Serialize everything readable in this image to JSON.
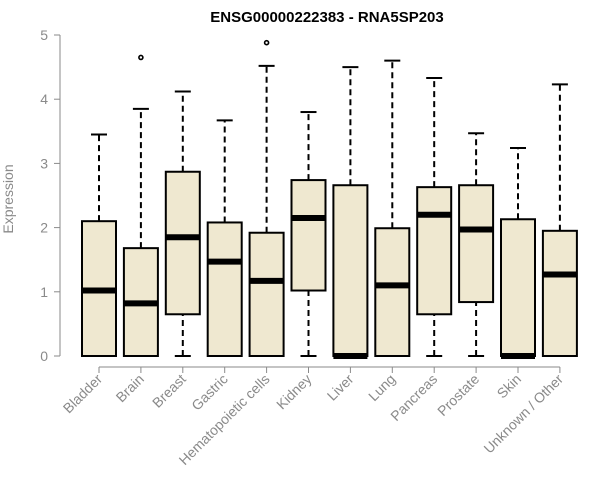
{
  "chart_data": {
    "type": "boxplot",
    "title": "ENSG00000222383 - RNA5SP203",
    "xlabel": "",
    "ylabel": "Expression",
    "ylim": [
      0,
      5
    ],
    "yticks": [
      "0",
      "1",
      "2",
      "3",
      "4",
      "5"
    ],
    "categories": [
      "Bladder",
      "Brain",
      "Breast",
      "Gastric",
      "Hematopoietic cells",
      "Kidney",
      "Liver",
      "Lung",
      "Pancreas",
      "Prostate",
      "Skin",
      "Unknown / Other"
    ],
    "boxes": [
      {
        "min": 0,
        "q1": 0,
        "median": 1.02,
        "q3": 2.1,
        "max": 3.45,
        "outliers": []
      },
      {
        "min": 0,
        "q1": 0,
        "median": 0.82,
        "q3": 1.68,
        "max": 3.85,
        "outliers": [
          4.65
        ]
      },
      {
        "min": 0,
        "q1": 0.65,
        "median": 1.85,
        "q3": 2.87,
        "max": 4.12,
        "outliers": []
      },
      {
        "min": 0,
        "q1": 0,
        "median": 1.47,
        "q3": 2.08,
        "max": 3.67,
        "outliers": []
      },
      {
        "min": 0,
        "q1": 0,
        "median": 1.17,
        "q3": 1.92,
        "max": 4.52,
        "outliers": [
          4.88
        ]
      },
      {
        "min": 0,
        "q1": 1.02,
        "median": 2.15,
        "q3": 2.74,
        "max": 3.8,
        "outliers": []
      },
      {
        "min": 0,
        "q1": 0,
        "median": 0,
        "q3": 2.66,
        "max": 4.5,
        "outliers": []
      },
      {
        "min": 0,
        "q1": 0,
        "median": 1.1,
        "q3": 1.99,
        "max": 4.6,
        "outliers": []
      },
      {
        "min": 0,
        "q1": 0.65,
        "median": 2.2,
        "q3": 2.63,
        "max": 4.33,
        "outliers": []
      },
      {
        "min": 0,
        "q1": 0.84,
        "median": 1.97,
        "q3": 2.66,
        "max": 3.47,
        "outliers": []
      },
      {
        "min": 0,
        "q1": 0,
        "median": 0,
        "q3": 2.13,
        "max": 3.24,
        "outliers": []
      },
      {
        "min": 0,
        "q1": 0,
        "median": 1.27,
        "q3": 1.95,
        "max": 4.23,
        "outliers": []
      }
    ],
    "colors": {
      "box_fill": "#efe8d0",
      "box_stroke": "#000000",
      "axis": "#8a8a8a"
    }
  }
}
